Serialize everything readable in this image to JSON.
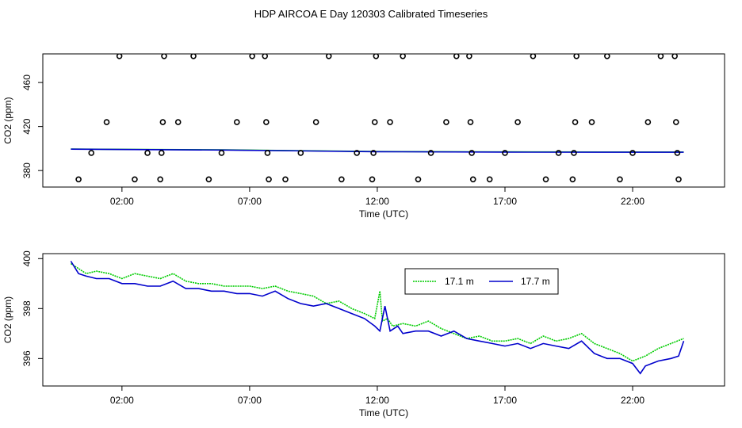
{
  "title": "HDP AIRCOA E  Day 120303  Calibrated Timeseries",
  "chart_data": [
    {
      "type": "scatter",
      "xlabel": "Time (UTC)",
      "ylabel": "CO2 (ppm)",
      "x_unit": "hours UTC",
      "xlim": [
        -1.1,
        25.6
      ],
      "ylim": [
        365,
        486
      ],
      "xticks": [
        2,
        7,
        12,
        17,
        22
      ],
      "xtick_labels": [
        "02:00",
        "07:00",
        "12:00",
        "17:00",
        "22:00"
      ],
      "yticks": [
        380,
        420,
        460
      ],
      "ytick_labels": [
        "380",
        "420",
        "460"
      ],
      "points": [
        [
          0.3,
          372
        ],
        [
          0.8,
          396
        ],
        [
          1.4,
          424
        ],
        [
          1.9,
          484
        ],
        [
          2.5,
          372
        ],
        [
          3.0,
          396
        ],
        [
          3.5,
          372
        ],
        [
          3.55,
          396
        ],
        [
          3.6,
          424
        ],
        [
          3.65,
          484
        ],
        [
          4.2,
          424
        ],
        [
          4.8,
          484
        ],
        [
          5.4,
          372
        ],
        [
          5.9,
          396
        ],
        [
          6.5,
          424
        ],
        [
          7.1,
          484
        ],
        [
          7.6,
          484
        ],
        [
          7.65,
          424
        ],
        [
          7.7,
          396
        ],
        [
          7.75,
          372
        ],
        [
          8.4,
          372
        ],
        [
          9.0,
          396
        ],
        [
          9.6,
          424
        ],
        [
          10.1,
          484
        ],
        [
          10.6,
          372
        ],
        [
          11.2,
          396
        ],
        [
          11.8,
          372
        ],
        [
          11.85,
          396
        ],
        [
          11.9,
          424
        ],
        [
          11.95,
          484
        ],
        [
          12.5,
          424
        ],
        [
          13.0,
          484
        ],
        [
          13.6,
          372
        ],
        [
          14.1,
          396
        ],
        [
          14.7,
          424
        ],
        [
          15.1,
          484
        ],
        [
          15.6,
          484
        ],
        [
          15.65,
          424
        ],
        [
          15.7,
          396
        ],
        [
          15.75,
          372
        ],
        [
          16.4,
          372
        ],
        [
          17.0,
          396
        ],
        [
          17.5,
          424
        ],
        [
          18.1,
          484
        ],
        [
          18.6,
          372
        ],
        [
          19.1,
          396
        ],
        [
          19.65,
          372
        ],
        [
          19.7,
          396
        ],
        [
          19.75,
          424
        ],
        [
          19.8,
          484
        ],
        [
          20.4,
          424
        ],
        [
          21.0,
          484
        ],
        [
          21.5,
          372
        ],
        [
          22.0,
          396
        ],
        [
          22.6,
          424
        ],
        [
          23.1,
          484
        ],
        [
          23.65,
          484
        ],
        [
          23.7,
          424
        ],
        [
          23.75,
          396
        ],
        [
          23.8,
          372
        ]
      ],
      "series": [
        {
          "name": "17.1 m",
          "color": "#00cc00",
          "x": [
            0,
            6,
            12,
            18,
            24
          ],
          "values": [
            399.5,
            398.8,
            397.3,
            396.9,
            396.8
          ]
        },
        {
          "name": "17.7 m",
          "color": "#0000cc",
          "x": [
            0,
            6,
            12,
            18,
            24
          ],
          "values": [
            399.4,
            398.6,
            397.1,
            396.7,
            396.6
          ]
        }
      ],
      "grid": false
    },
    {
      "type": "line",
      "xlabel": "Time (UTC)",
      "ylabel": "CO2 (ppm)",
      "x_unit": "hours UTC",
      "xlim": [
        -1.1,
        25.6
      ],
      "ylim": [
        394.9,
        400.2
      ],
      "xticks": [
        2,
        7,
        12,
        17,
        22
      ],
      "xtick_labels": [
        "02:00",
        "07:00",
        "12:00",
        "17:00",
        "22:00"
      ],
      "yticks": [
        396,
        398,
        400
      ],
      "ytick_labels": [
        "396",
        "398",
        "400"
      ],
      "legend": "top-center",
      "grid": false,
      "series": [
        {
          "name": "17.1 m",
          "color": "#00cc00",
          "dotted": true,
          "x": [
            0,
            0.3,
            0.6,
            1,
            1.5,
            2,
            2.5,
            3,
            3.5,
            4,
            4.5,
            5,
            5.5,
            6,
            6.5,
            7,
            7.5,
            8,
            8.5,
            9,
            9.5,
            10,
            10.5,
            11,
            11.5,
            11.9,
            12.1,
            12.2,
            12.4,
            12.6,
            13,
            13.5,
            14,
            14.5,
            15,
            15.5,
            16,
            16.5,
            17,
            17.5,
            18,
            18.5,
            19,
            19.5,
            20,
            20.5,
            21,
            21.5,
            22,
            22.5,
            23,
            23.5,
            24
          ],
          "values": [
            399.8,
            399.6,
            399.4,
            399.5,
            399.4,
            399.2,
            399.4,
            399.3,
            399.2,
            399.4,
            399.1,
            399.0,
            399.0,
            398.9,
            398.9,
            398.9,
            398.8,
            398.9,
            398.7,
            398.6,
            398.5,
            398.2,
            398.3,
            398.0,
            397.8,
            397.6,
            398.7,
            397.5,
            397.6,
            397.3,
            397.4,
            397.3,
            397.5,
            397.2,
            397.0,
            396.8,
            396.9,
            396.7,
            396.7,
            396.8,
            396.6,
            396.9,
            396.7,
            396.8,
            397.0,
            396.6,
            396.4,
            396.2,
            395.9,
            396.1,
            396.4,
            396.6,
            396.8
          ]
        },
        {
          "name": "17.7 m",
          "color": "#0000cc",
          "dotted": false,
          "x": [
            0,
            0.3,
            0.6,
            1,
            1.5,
            2,
            2.5,
            3,
            3.5,
            4,
            4.5,
            5,
            5.5,
            6,
            6.5,
            7,
            7.5,
            8,
            8.5,
            9,
            9.5,
            10,
            10.5,
            11,
            11.5,
            11.9,
            12.1,
            12.3,
            12.5,
            12.8,
            13,
            13.5,
            14,
            14.5,
            15,
            15.5,
            16,
            16.5,
            17,
            17.5,
            18,
            18.5,
            19,
            19.5,
            20,
            20.5,
            21,
            21.5,
            22,
            22.3,
            22.5,
            23,
            23.5,
            23.8,
            24
          ],
          "values": [
            399.9,
            399.4,
            399.3,
            399.2,
            399.2,
            399.0,
            399.0,
            398.9,
            398.9,
            399.1,
            398.8,
            398.8,
            398.7,
            398.7,
            398.6,
            398.6,
            398.5,
            398.7,
            398.4,
            398.2,
            398.1,
            398.2,
            398.0,
            397.8,
            397.6,
            397.3,
            397.1,
            398.1,
            397.1,
            397.3,
            397.0,
            397.1,
            397.1,
            396.9,
            397.1,
            396.8,
            396.7,
            396.6,
            396.5,
            396.6,
            396.4,
            396.6,
            396.5,
            396.4,
            396.7,
            396.2,
            396.0,
            396.0,
            395.8,
            395.4,
            395.7,
            395.9,
            396.0,
            396.1,
            396.7
          ]
        }
      ]
    }
  ]
}
